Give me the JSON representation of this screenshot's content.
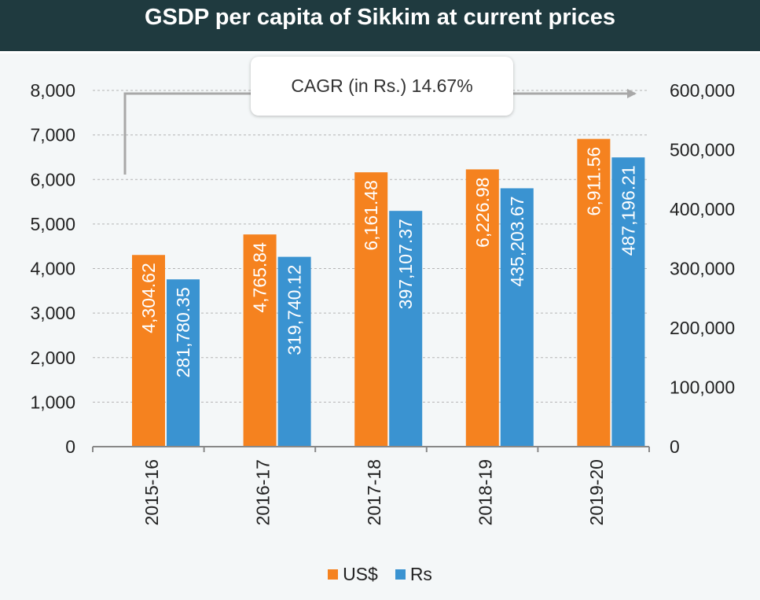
{
  "colors": {
    "usd": "#f5821f",
    "rs": "#3a93d1",
    "header": "#1f3a3f"
  },
  "chart_data": {
    "type": "bar",
    "title": "GSDP per capita of Sikkim at current prices",
    "categories": [
      "2015-16",
      "2016-17",
      "2017-18",
      "2018-19",
      "2019-20"
    ],
    "series": [
      {
        "name": "US$",
        "axis": "left",
        "values": [
          4304.62,
          4765.84,
          6161.48,
          6226.98,
          6911.56
        ],
        "labels": [
          "4,304.62",
          "4,765.84",
          "6,161.48",
          "6,226.98",
          "6,911.56"
        ]
      },
      {
        "name": "Rs",
        "axis": "right",
        "values": [
          281780.35,
          319740.12,
          397107.37,
          435203.67,
          487196.21
        ],
        "labels": [
          "281,780.35",
          "319,740.12",
          "397,107.37",
          "435,203.67",
          "487,196.21"
        ]
      }
    ],
    "y_left": {
      "lim": [
        0,
        8000
      ],
      "ticks": [
        "0",
        "1,000",
        "2,000",
        "3,000",
        "4,000",
        "5,000",
        "6,000",
        "7,000",
        "8,000"
      ]
    },
    "y_right": {
      "lim": [
        0,
        600000
      ],
      "ticks": [
        "0",
        "100,000",
        "200,000",
        "300,000",
        "400,000",
        "500,000",
        "600,000"
      ]
    },
    "annotation": "CAGR (in Rs.) 14.67%",
    "grid": true,
    "legend_position": "bottom"
  }
}
